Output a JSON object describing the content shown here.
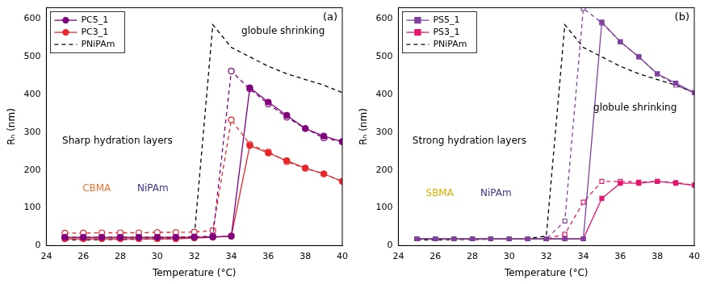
{
  "chart_data": [
    {
      "type": "line",
      "label": "(a)",
      "x_label": "Temperature (°C)",
      "y_label": "Rₕ (nm)",
      "xlim": [
        24,
        40
      ],
      "xticks": [
        24,
        26,
        28,
        30,
        32,
        34,
        36,
        38,
        40
      ],
      "ylim": [
        0,
        630
      ],
      "yticks": [
        0,
        100,
        200,
        300,
        400,
        500,
        600
      ],
      "grid": false,
      "legend": "upper left",
      "series": [
        {
          "name": "PC5_1",
          "color": "#800080",
          "marker": "circle",
          "line_style": "solid",
          "x": [
            25,
            26,
            27,
            28,
            29,
            30,
            31,
            32,
            33,
            34,
            35,
            36,
            37,
            38,
            39,
            40
          ],
          "values": [
            22,
            22,
            22,
            22,
            22,
            22,
            22,
            22,
            23,
            25,
            418,
            380,
            345,
            310,
            290,
            275
          ]
        },
        {
          "color": "#800080",
          "marker": "open_circle",
          "line_style": "dashed",
          "x": [
            25,
            26,
            27,
            28,
            29,
            30,
            31,
            32,
            33,
            34,
            35,
            36,
            37,
            38,
            39,
            40
          ],
          "values": [
            22,
            22,
            22,
            22,
            22,
            22,
            22,
            23,
            25,
            462,
            415,
            375,
            340,
            310,
            285,
            275
          ]
        },
        {
          "name": "PC3_1",
          "color": "#e8262b",
          "marker": "circle",
          "line_style": "solid",
          "x": [
            25,
            26,
            27,
            28,
            29,
            30,
            31,
            32,
            33,
            34,
            35,
            36,
            37,
            38,
            39,
            40
          ],
          "values": [
            18,
            18,
            18,
            18,
            18,
            18,
            18,
            20,
            22,
            25,
            265,
            245,
            225,
            205,
            190,
            170
          ]
        },
        {
          "color": "#e8262b",
          "marker": "open_circle",
          "line_style": "dashed",
          "x": [
            25,
            26,
            27,
            28,
            29,
            30,
            31,
            32,
            33,
            34,
            35,
            36,
            37,
            38,
            39,
            40
          ],
          "values": [
            33,
            33,
            34,
            34,
            34,
            35,
            35,
            36,
            40,
            333,
            268,
            248,
            222,
            205,
            190,
            170
          ]
        },
        {
          "name": "PNiPAm",
          "color": "#000000",
          "marker": "none",
          "line_style": "dashed",
          "x": [
            25,
            26,
            27,
            28,
            29,
            30,
            31,
            32,
            33,
            34,
            35,
            36,
            37,
            38,
            39,
            40
          ],
          "values": [
            15,
            15,
            16,
            16,
            17,
            18,
            19,
            25,
            585,
            525,
            500,
            475,
            455,
            440,
            425,
            405
          ]
        }
      ],
      "annotations": [
        {
          "text": "globule shrinking",
          "color": "#000000"
        },
        {
          "text": "Sharp hydration layers",
          "color": "#000000"
        },
        {
          "text": "CBMA",
          "color": "#f07030"
        },
        {
          "text": "NiPAm",
          "color": "#3a3a8c"
        }
      ]
    },
    {
      "type": "line",
      "label": "(b)",
      "x_label": "Temperature (°C)",
      "y_label": "Rₕ (nm)",
      "xlim": [
        24,
        40
      ],
      "xticks": [
        24,
        26,
        28,
        30,
        32,
        34,
        36,
        38,
        40
      ],
      "ylim": [
        0,
        630
      ],
      "yticks": [
        0,
        100,
        200,
        300,
        400,
        500,
        600
      ],
      "grid": false,
      "legend": "upper left",
      "series": [
        {
          "name": "PS5_1",
          "color": "#8040a0",
          "marker": "square",
          "line_style": "solid",
          "x": [
            25,
            26,
            27,
            28,
            29,
            30,
            31,
            32,
            33,
            34,
            35,
            36,
            37,
            38,
            39,
            40
          ],
          "values": [
            18,
            18,
            18,
            18,
            18,
            18,
            18,
            18,
            18,
            18,
            592,
            540,
            500,
            455,
            430,
            405
          ]
        },
        {
          "color": "#8040a0",
          "marker": "open_square",
          "line_style": "dashed",
          "x": [
            25,
            26,
            27,
            28,
            29,
            30,
            31,
            32,
            33,
            34,
            35,
            36,
            37,
            38,
            39,
            40
          ],
          "values": [
            18,
            18,
            18,
            18,
            18,
            18,
            18,
            18,
            65,
            628,
            590,
            540,
            500,
            455,
            425,
            405
          ]
        },
        {
          "name": "PS3_1",
          "color": "#e5176f",
          "marker": "square",
          "line_style": "solid",
          "x": [
            25,
            26,
            27,
            28,
            29,
            30,
            31,
            32,
            33,
            34,
            35,
            36,
            37,
            38,
            39,
            40
          ],
          "values": [
            18,
            18,
            18,
            18,
            18,
            18,
            18,
            18,
            18,
            18,
            125,
            165,
            165,
            170,
            165,
            160
          ]
        },
        {
          "color": "#e5176f",
          "marker": "open_square",
          "line_style": "dashed",
          "x": [
            25,
            26,
            27,
            28,
            29,
            30,
            31,
            32,
            33,
            34,
            35,
            36,
            37,
            38,
            39,
            40
          ],
          "values": [
            18,
            18,
            18,
            18,
            18,
            18,
            18,
            18,
            30,
            115,
            170,
            170,
            168,
            170,
            167,
            160
          ]
        },
        {
          "name": "PNiPAm",
          "color": "#000000",
          "marker": "none",
          "line_style": "dashed",
          "x": [
            25,
            26,
            27,
            28,
            29,
            30,
            31,
            32,
            33,
            34,
            35,
            36,
            37,
            38,
            39,
            40
          ],
          "values": [
            15,
            15,
            16,
            16,
            17,
            18,
            19,
            25,
            585,
            525,
            500,
            475,
            455,
            440,
            425,
            405
          ]
        }
      ],
      "annotations": [
        {
          "text": "Strong hydration layers",
          "color": "#000000"
        },
        {
          "text": "SBMA",
          "color": "#d4b000"
        },
        {
          "text": "NiPAm",
          "color": "#3a3a8c"
        },
        {
          "text": "globule shrinking",
          "color": "#000000"
        }
      ]
    }
  ]
}
